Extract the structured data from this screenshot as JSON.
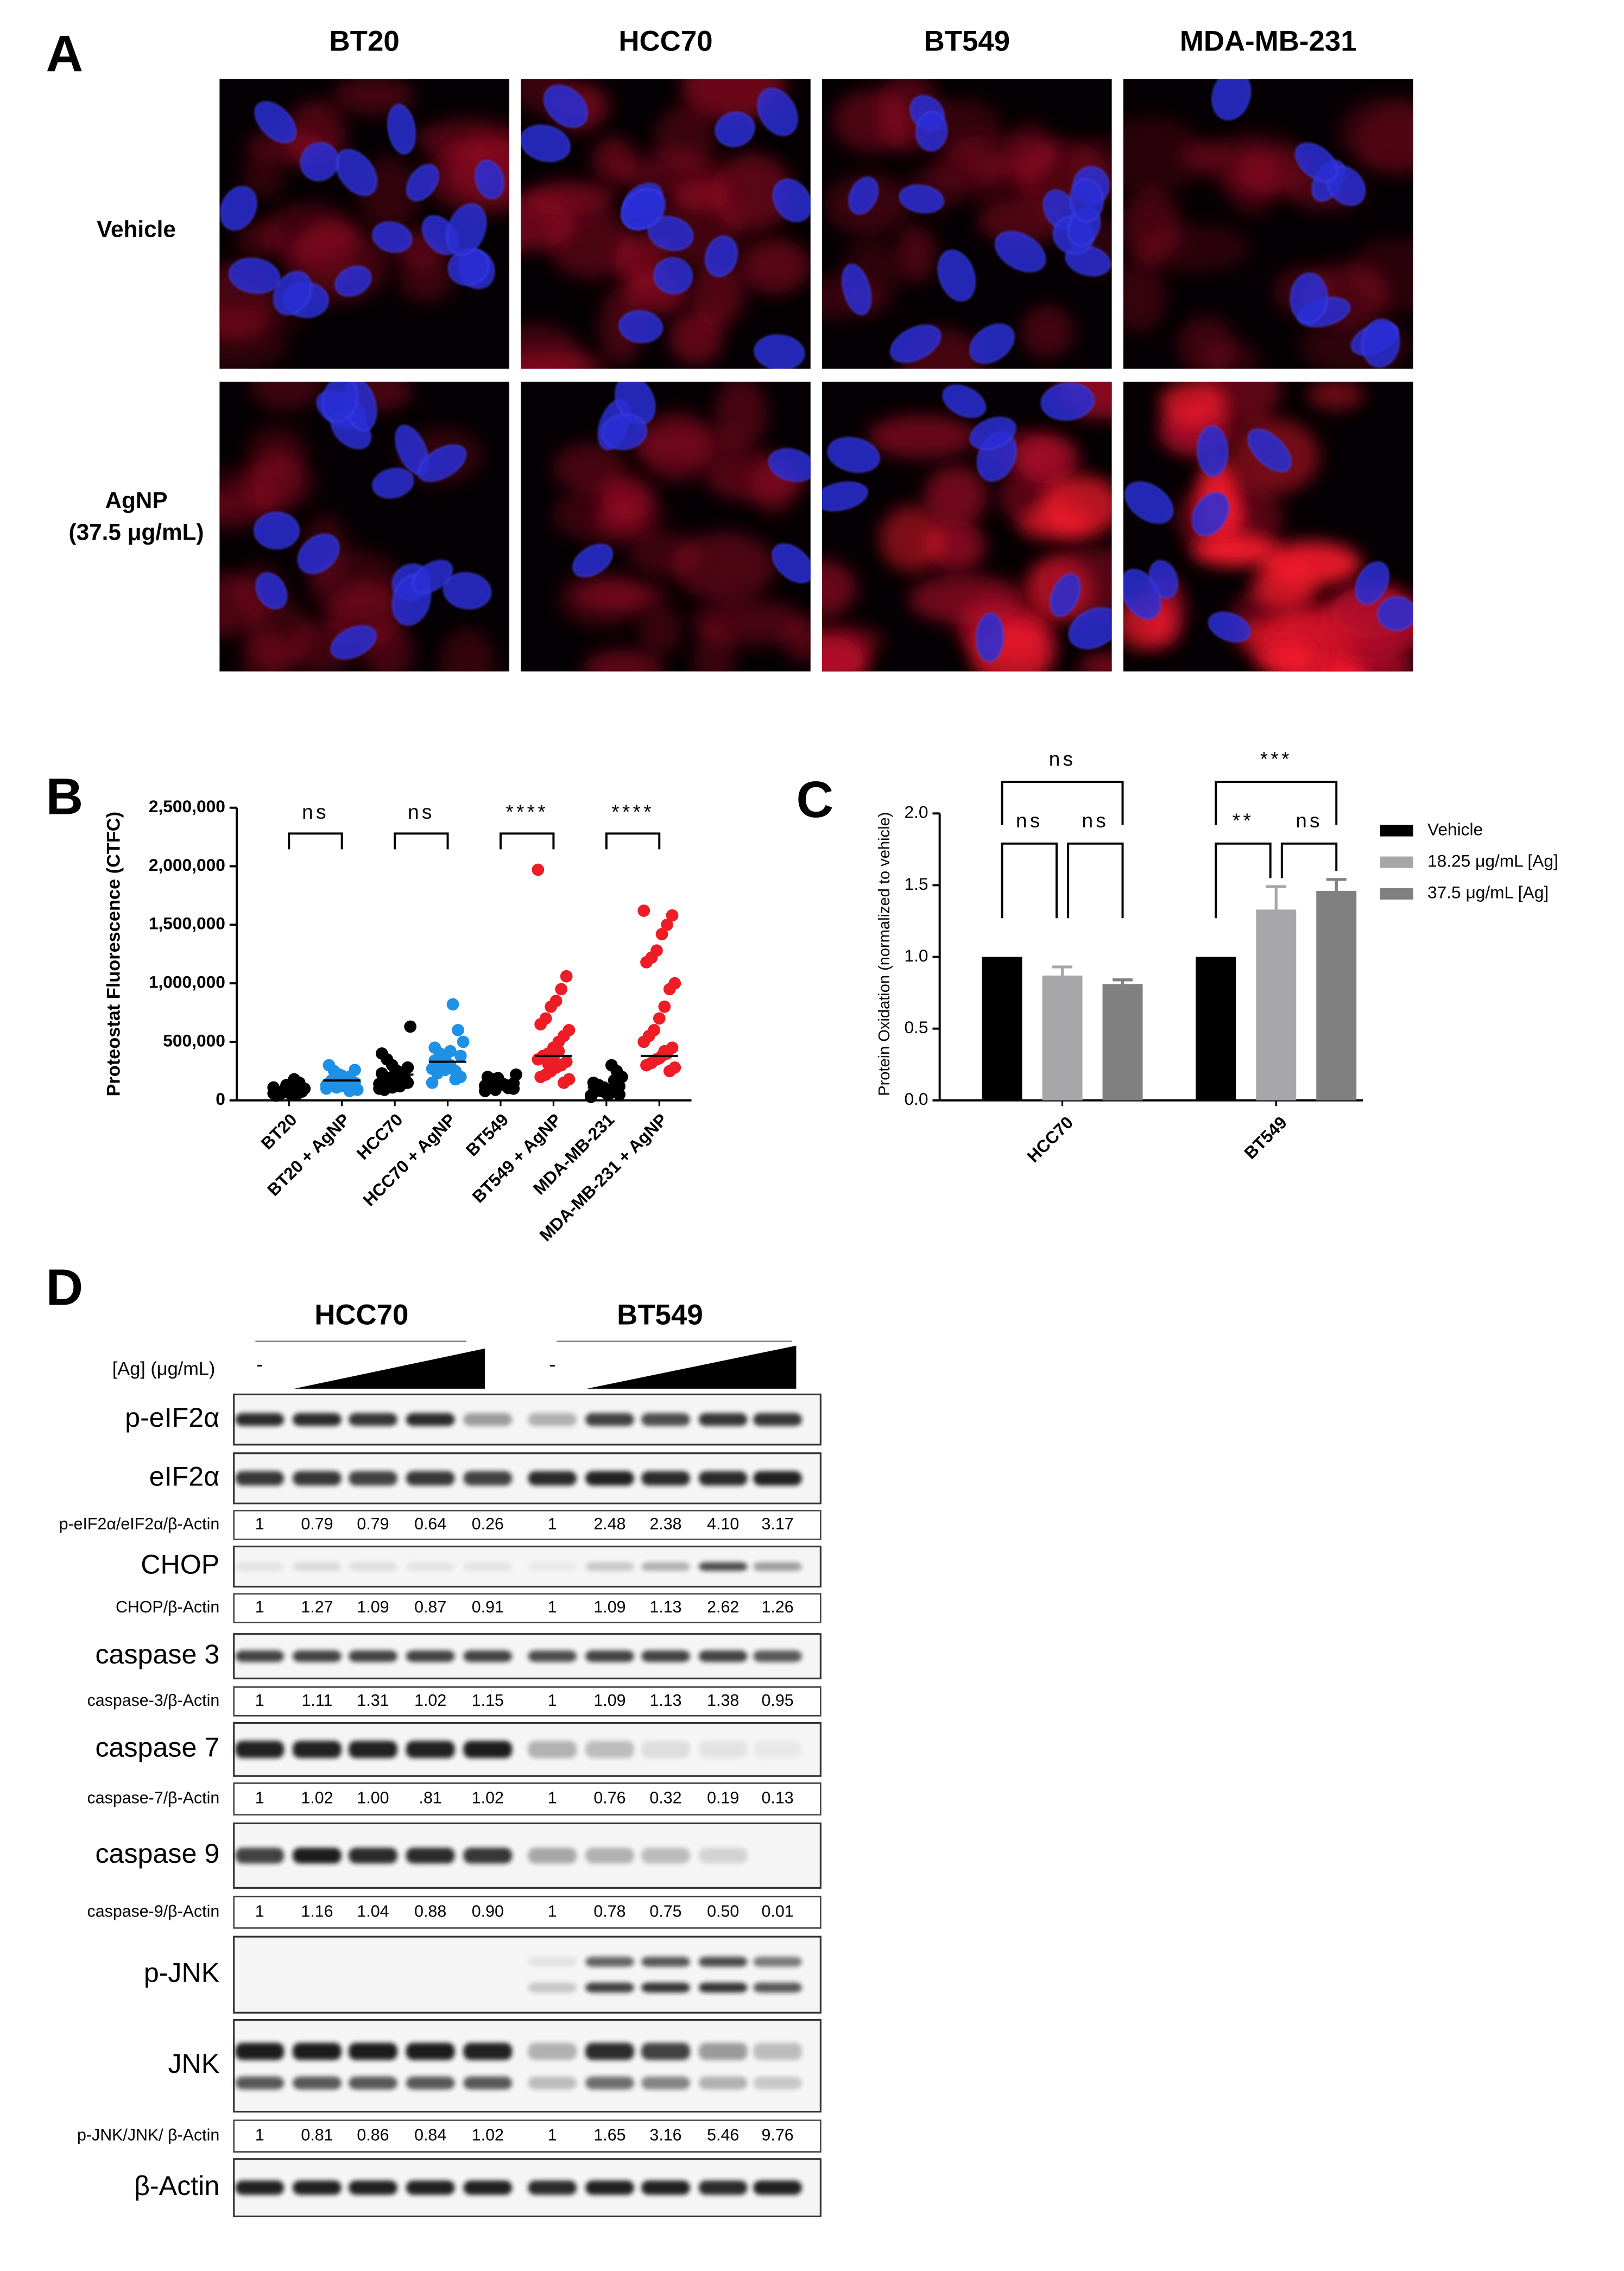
{
  "panel_a": {
    "label": "A",
    "columns": [
      {
        "name": "BT20",
        "color": "#1e90e6"
      },
      {
        "name": "HCC70",
        "color": "#1e90e6"
      },
      {
        "name": "BT549",
        "color": "#ee1c25"
      },
      {
        "name": "MDA-MB-231",
        "color": "#ee1c25"
      }
    ],
    "rows": [
      {
        "lines": [
          "Vehicle"
        ]
      },
      {
        "lines": [
          "AgNP",
          "(37.5 μg/mL)"
        ]
      }
    ]
  },
  "chart_data": [
    {
      "panel": "B",
      "type": "strip",
      "ylabel": "Proteostat Fluorescence (CTFC)",
      "categories": [
        "BT20",
        "BT20 + AgNP",
        "HCC70",
        "HCC70 + AgNP",
        "BT549",
        "BT549 + AgNP",
        "MDA-MB-231",
        "MDA-MB-231 + AgNP"
      ],
      "colors": [
        "#000000",
        "#1e90e6",
        "#000000",
        "#1e90e6",
        "#000000",
        "#ee1c25",
        "#000000",
        "#ee1c25"
      ],
      "points": [
        [
          60000,
          80000,
          50000,
          90000,
          120000,
          70000,
          40000,
          100000,
          150000,
          180000,
          65000,
          85000,
          55000,
          110000,
          75000,
          95000,
          45000,
          130000,
          60000,
          70000
        ],
        [
          100000,
          150000,
          200000,
          120000,
          180000,
          250000,
          300000,
          90000,
          160000,
          140000,
          210000,
          110000,
          170000,
          130000,
          260000,
          80000,
          190000,
          220000,
          125000,
          145000
        ],
        [
          100000,
          150000,
          200000,
          250000,
          300000,
          350000,
          400000,
          630000,
          180000,
          120000,
          220000,
          160000,
          90000,
          140000,
          280000,
          210000,
          170000,
          110000,
          190000,
          230000
        ],
        [
          150000,
          200000,
          250000,
          300000,
          350000,
          400000,
          450000,
          500000,
          600000,
          820000,
          280000,
          320000,
          230000,
          270000,
          380000,
          180000,
          420000,
          260000,
          310000,
          340000
        ],
        [
          80000,
          100000,
          120000,
          140000,
          160000,
          180000,
          200000,
          220000,
          110000,
          130000,
          150000,
          90000,
          170000,
          125000,
          145000,
          105000,
          135000,
          190000,
          115000,
          155000
        ],
        [
          1970000,
          1060000,
          950000,
          850000,
          800000,
          700000,
          650000,
          600000,
          550000,
          500000,
          450000,
          400000,
          380000,
          350000,
          330000,
          300000,
          280000,
          250000,
          220000,
          200000,
          180000,
          150000,
          420000,
          360000,
          310000
        ],
        [
          30000,
          50000,
          70000,
          90000,
          110000,
          130000,
          150000,
          200000,
          250000,
          300000,
          60000,
          80000,
          100000,
          40000,
          120000,
          170000,
          55000,
          75000,
          95000,
          65000
        ],
        [
          1620000,
          1580000,
          1500000,
          1420000,
          1280000,
          1220000,
          1180000,
          1000000,
          950000,
          800000,
          700000,
          600000,
          550000,
          500000,
          450000,
          400000,
          380000,
          350000,
          320000,
          300000,
          280000,
          250000,
          420000,
          360000
        ]
      ],
      "means": [
        85000,
        170000,
        220000,
        330000,
        145000,
        380000,
        110000,
        380000
      ],
      "ylim": [
        0,
        2500000
      ],
      "yticks": [
        0,
        {
          "value": 500000,
          "label": "500,000"
        },
        {
          "value": 1000000,
          "label": "1,000,000"
        },
        {
          "value": 1500000,
          "label": "1,500,000"
        },
        {
          "value": 2000000,
          "label": "2,000,000"
        },
        {
          "value": 2500000,
          "label": "2,500,000"
        }
      ],
      "comparisons": [
        {
          "pair": [
            0,
            1
          ],
          "label": "ns"
        },
        {
          "pair": [
            2,
            3
          ],
          "label": "ns"
        },
        {
          "pair": [
            4,
            5
          ],
          "label": "****"
        },
        {
          "pair": [
            6,
            7
          ],
          "label": "****"
        }
      ]
    },
    {
      "panel": "C",
      "type": "bar",
      "ylabel": "Protein Oxidation (normalized to vehicle)",
      "categories": [
        "HCC70",
        "BT549"
      ],
      "series": [
        {
          "name": "Vehicle",
          "color": "#000000",
          "values": [
            1,
            1
          ]
        },
        {
          "name": "18.25 μg/mL [Ag]",
          "color": "#a7a7a9",
          "values": [
            0.87,
            1.33
          ],
          "errors": [
            0.06,
            0.16
          ]
        },
        {
          "name": "37.5 μg/mL [Ag]",
          "color": "#808080",
          "values": [
            0.81,
            1.46
          ],
          "errors": [
            0.03,
            0.08
          ]
        }
      ],
      "ylim": [
        0,
        2
      ],
      "yticks": [
        {
          "value": 0,
          "label": "0.0"
        },
        {
          "value": 0.5,
          "label": "0.5"
        },
        {
          "value": 1,
          "label": "1.0"
        },
        {
          "value": 1.5,
          "label": "1.5"
        },
        {
          "value": 2,
          "label": "2.0"
        }
      ],
      "legend": "right",
      "comparisons": [
        {
          "category": 0,
          "pair": [
            0,
            2
          ],
          "label": "ns"
        },
        {
          "category": 0,
          "pair": [
            0,
            1
          ],
          "label": "ns"
        },
        {
          "category": 0,
          "pair": [
            1,
            2
          ],
          "label": "ns"
        },
        {
          "category": 1,
          "pair": [
            0,
            2
          ],
          "label": "***"
        },
        {
          "category": 1,
          "pair": [
            0,
            1
          ],
          "label": "**"
        },
        {
          "category": 1,
          "pair": [
            1,
            2
          ],
          "label": "ns"
        }
      ]
    }
  ],
  "panel_d": {
    "label": "D",
    "cell_lines": [
      {
        "name": "HCC70",
        "color": "#1e90e6"
      },
      {
        "name": "BT549",
        "color": "#ee1c25"
      }
    ],
    "dose_label": "[Ag] (μg/mL)",
    "control_label": "-",
    "rows": [
      {
        "label": "p-eIF2α"
      },
      {
        "label": "eIF2α"
      },
      {
        "label": "p-eIF2α/eIF2α/β-Actin",
        "values": [
          "1",
          "0.79",
          "0.79",
          "0.64",
          "0.26",
          "1",
          "2.48",
          "2.38",
          "4.10",
          "3.17"
        ]
      },
      {
        "label": "CHOP"
      },
      {
        "label": "CHOP/β-Actin",
        "values": [
          "1",
          "1.27",
          "1.09",
          "0.87",
          "0.91",
          "1",
          "1.09",
          "1.13",
          "2.62",
          "1.26"
        ]
      },
      {
        "label": "caspase 3"
      },
      {
        "label": "caspase-3/β-Actin",
        "values": [
          "1",
          "1.11",
          "1.31",
          "1.02",
          "1.15",
          "1",
          "1.09",
          "1.13",
          "1.38",
          "0.95"
        ]
      },
      {
        "label": "caspase 7"
      },
      {
        "label": "caspase-7/β-Actin",
        "values": [
          "1",
          "1.02",
          "1.00",
          ".81",
          "1.02",
          "1",
          "0.76",
          "0.32",
          "0.19",
          "0.13"
        ]
      },
      {
        "label": "caspase 9"
      },
      {
        "label": "caspase-9/β-Actin",
        "values": [
          "1",
          "1.16",
          "1.04",
          "0.88",
          "0.90",
          "1",
          "0.78",
          "0.75",
          "0.50",
          "0.01"
        ]
      },
      {
        "label": "p-JNK"
      },
      {
        "label": "JNK"
      },
      {
        "label": "p-JNK/JNK/ β-Actin",
        "values": [
          "1",
          "0.81",
          "0.86",
          "0.84",
          "1.02",
          "1",
          "1.65",
          "3.16",
          "5.46",
          "9.76"
        ]
      },
      {
        "label": "β-Actin"
      }
    ]
  }
}
